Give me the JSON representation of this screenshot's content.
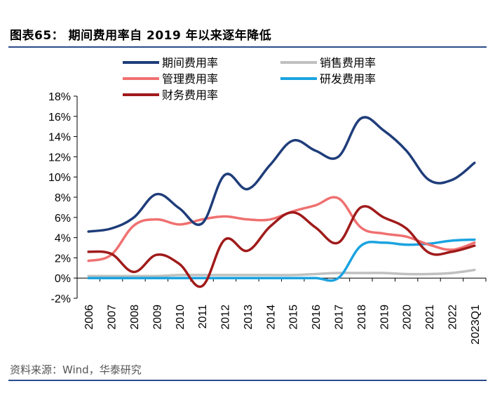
{
  "figure": {
    "title": "图表65： 期间费用率自 2019 年以来逐年降低",
    "source": "资料来源：Wind，华泰研究"
  },
  "chart_data": {
    "type": "line",
    "title": "",
    "xlabel": "",
    "ylabel": "",
    "categories": [
      "2006",
      "2007",
      "2008",
      "2009",
      "2010",
      "2011",
      "2012",
      "2013",
      "2014",
      "2015",
      "2016",
      "2017",
      "2018",
      "2019",
      "2020",
      "2021",
      "2022",
      "2023Q1"
    ],
    "yticks": [
      "-2%",
      "0%",
      "2%",
      "4%",
      "6%",
      "8%",
      "10%",
      "12%",
      "14%",
      "16%",
      "18%"
    ],
    "ylim": [
      -2,
      18
    ],
    "grid": false,
    "legend_position": "top",
    "series": [
      {
        "name": "期间费用率",
        "color": "#1f3d7a",
        "values": [
          4.6,
          4.9,
          6.0,
          8.3,
          6.9,
          5.4,
          10.2,
          8.8,
          11.2,
          13.6,
          12.6,
          12.0,
          15.8,
          14.6,
          12.6,
          9.7,
          9.7,
          11.4
        ]
      },
      {
        "name": "管理费用率",
        "color": "#f07070",
        "values": [
          1.7,
          2.3,
          5.2,
          5.8,
          5.3,
          5.8,
          6.1,
          5.8,
          5.8,
          6.6,
          7.2,
          7.9,
          5.0,
          4.4,
          4.1,
          3.3,
          2.8,
          3.5
        ]
      },
      {
        "name": "财务费用率",
        "color": "#a01a1a",
        "values": [
          2.6,
          2.4,
          0.6,
          2.3,
          1.4,
          -0.8,
          3.8,
          2.7,
          5.1,
          6.5,
          5.0,
          3.5,
          7.0,
          6.0,
          4.9,
          2.5,
          2.6,
          3.2
        ]
      },
      {
        "name": "销售费用率",
        "color": "#c0c0c0",
        "values": [
          0.2,
          0.2,
          0.2,
          0.2,
          0.3,
          0.3,
          0.3,
          0.3,
          0.3,
          0.3,
          0.4,
          0.5,
          0.5,
          0.5,
          0.4,
          0.4,
          0.5,
          0.8
        ]
      },
      {
        "name": "研发费用率",
        "color": "#1aa3e0",
        "values": [
          0.0,
          0.0,
          0.0,
          0.0,
          0.0,
          0.0,
          0.0,
          0.0,
          0.0,
          0.0,
          0.0,
          0.0,
          3.2,
          3.5,
          3.3,
          3.4,
          3.7,
          3.8
        ]
      }
    ]
  }
}
